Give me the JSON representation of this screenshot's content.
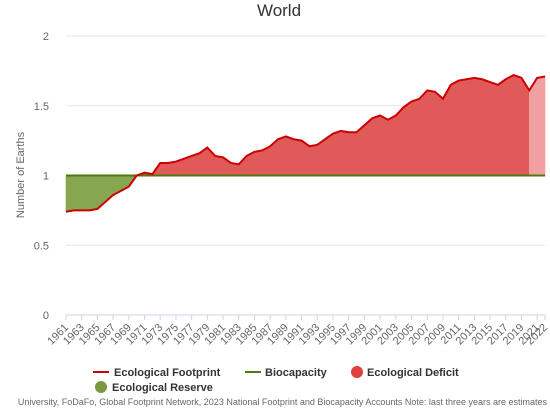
{
  "chart_data": {
    "type": "area",
    "title": "World",
    "ylabel": "Number of Earths",
    "xlabel": "",
    "ylim": [
      0,
      2
    ],
    "yticks": [
      0,
      0.5,
      1,
      1.5,
      2
    ],
    "xlim": [
      1961,
      2022
    ],
    "xticks": [
      1961,
      1963,
      1965,
      1967,
      1969,
      1971,
      1973,
      1975,
      1977,
      1979,
      1981,
      1983,
      1985,
      1987,
      1989,
      1991,
      1993,
      1995,
      1997,
      1999,
      2001,
      2003,
      2005,
      2007,
      2009,
      2011,
      2013,
      2015,
      2017,
      2019,
      2021,
      2022
    ],
    "grid": "horizontal",
    "legend_position": "bottom",
    "years": [
      1961,
      1962,
      1963,
      1964,
      1965,
      1966,
      1967,
      1968,
      1969,
      1970,
      1971,
      1972,
      1973,
      1974,
      1975,
      1976,
      1977,
      1978,
      1979,
      1980,
      1981,
      1982,
      1983,
      1984,
      1985,
      1986,
      1987,
      1988,
      1989,
      1990,
      1991,
      1992,
      1993,
      1994,
      1995,
      1996,
      1997,
      1998,
      1999,
      2000,
      2001,
      2002,
      2003,
      2004,
      2005,
      2006,
      2007,
      2008,
      2009,
      2010,
      2011,
      2012,
      2013,
      2014,
      2015,
      2016,
      2017,
      2018,
      2019,
      2020,
      2021,
      2022
    ],
    "series": [
      {
        "name": "Ecological Footprint",
        "color": "#cc0000",
        "values": [
          0.74,
          0.75,
          0.75,
          0.75,
          0.76,
          0.81,
          0.86,
          0.89,
          0.92,
          1.0,
          1.02,
          1.01,
          1.09,
          1.09,
          1.1,
          1.12,
          1.14,
          1.16,
          1.2,
          1.14,
          1.13,
          1.09,
          1.08,
          1.14,
          1.17,
          1.18,
          1.21,
          1.26,
          1.28,
          1.26,
          1.25,
          1.21,
          1.22,
          1.26,
          1.3,
          1.32,
          1.31,
          1.31,
          1.36,
          1.41,
          1.43,
          1.4,
          1.43,
          1.49,
          1.53,
          1.55,
          1.61,
          1.6,
          1.55,
          1.65,
          1.68,
          1.69,
          1.7,
          1.69,
          1.67,
          1.65,
          1.69,
          1.72,
          1.7,
          1.61,
          1.7,
          1.71
        ]
      },
      {
        "name": "Biocapacity",
        "color": "#4d7a0c",
        "values": [
          1,
          1,
          1,
          1,
          1,
          1,
          1,
          1,
          1,
          1,
          1,
          1,
          1,
          1,
          1,
          1,
          1,
          1,
          1,
          1,
          1,
          1,
          1,
          1,
          1,
          1,
          1,
          1,
          1,
          1,
          1,
          1,
          1,
          1,
          1,
          1,
          1,
          1,
          1,
          1,
          1,
          1,
          1,
          1,
          1,
          1,
          1,
          1,
          1,
          1,
          1,
          1,
          1,
          1,
          1,
          1,
          1,
          1,
          1,
          1,
          1,
          1
        ]
      }
    ],
    "areas": [
      {
        "name": "Ecological Deficit",
        "color": "#e05a5a"
      },
      {
        "name": "Ecological Reserve",
        "color": "#86a650"
      }
    ],
    "estimate_years": [
      2020,
      2021,
      2022
    ],
    "estimate_color": "#f0a0a0",
    "credits": "University, FoDaFo, Global Footprint Network, 2023 National Footprint and Biocapacity Accounts Note: last three years are estimates"
  }
}
